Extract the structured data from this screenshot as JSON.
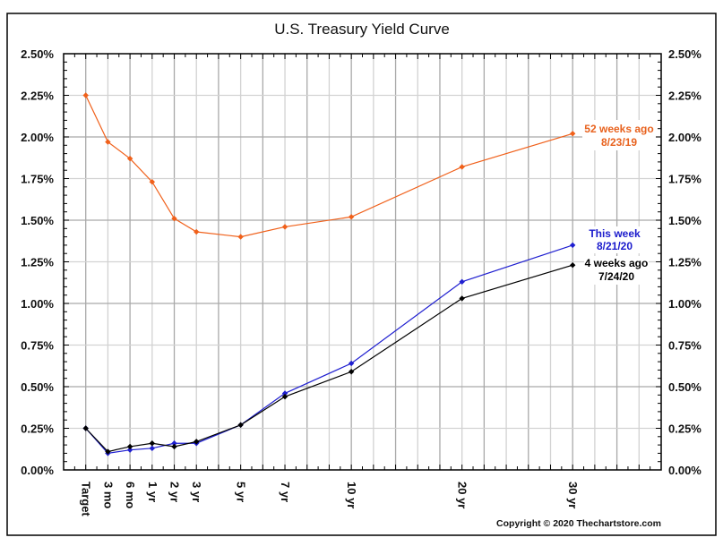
{
  "chart_data": {
    "type": "line",
    "title": "U.S. Treasury Yield Curve",
    "xlabel": "",
    "ylabel": "",
    "categories": [
      "Target",
      "3 mo",
      "6 mo",
      "1 yr",
      "2 yr",
      "3 yr",
      "5 yr",
      "7 yr",
      "10 yr",
      "20 yr",
      "30 yr"
    ],
    "category_positions": [
      1,
      2,
      3,
      4,
      5,
      6,
      8,
      10,
      13,
      18,
      23
    ],
    "xlim": [
      0,
      27
    ],
    "ylim": [
      0,
      2.5
    ],
    "yticks": [
      0,
      0.25,
      0.5,
      0.75,
      1.0,
      1.25,
      1.5,
      1.75,
      2.0,
      2.25,
      2.5
    ],
    "ytick_labels": [
      "0.00%",
      "0.25%",
      "0.50%",
      "0.75%",
      "1.00%",
      "1.25%",
      "1.50%",
      "1.75%",
      "2.00%",
      "2.25%",
      "2.50%"
    ],
    "grid": true,
    "y_axis_both_sides": true,
    "series": [
      {
        "name": "52 weeks ago",
        "date": "8/23/19",
        "color": "#f0601a",
        "label_color": "#e8621e",
        "values": [
          2.25,
          1.97,
          1.87,
          1.73,
          1.51,
          1.43,
          1.4,
          1.46,
          1.52,
          1.82,
          2.02
        ]
      },
      {
        "name": "This week",
        "date": "8/21/20",
        "color": "#1f1fd0",
        "label_color": "#1a1acc",
        "values": [
          0.25,
          0.1,
          0.12,
          0.13,
          0.16,
          0.16,
          0.27,
          0.46,
          0.64,
          1.13,
          1.35
        ]
      },
      {
        "name": "4 weeks ago",
        "date": "7/24/20",
        "color": "#000000",
        "label_color": "#000000",
        "values": [
          0.25,
          0.11,
          0.14,
          0.16,
          0.14,
          0.17,
          0.27,
          0.44,
          0.59,
          1.03,
          1.23
        ]
      }
    ],
    "annotations": {
      "copyright": "Copyright © 2020 Thechartstore.com"
    }
  }
}
